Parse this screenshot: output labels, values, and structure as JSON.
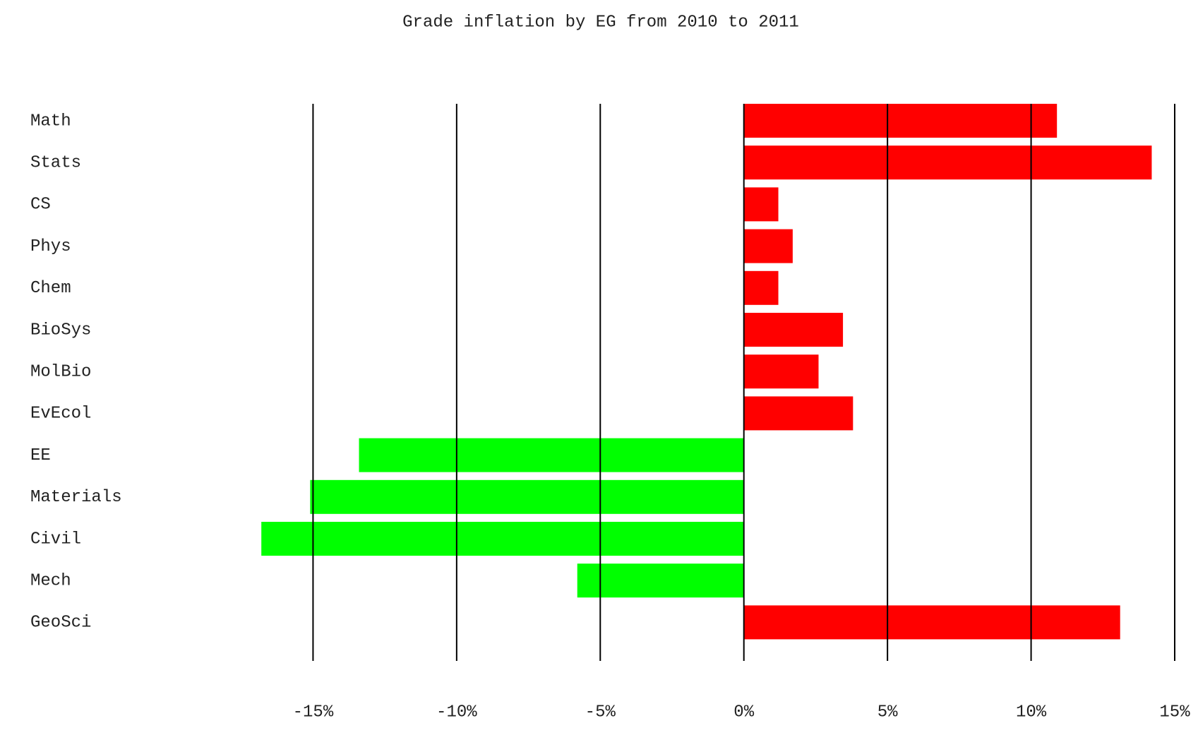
{
  "chart_data": {
    "type": "hbar",
    "title": "Grade inflation by EG from 2010 to 2011",
    "categories": [
      "Math",
      "Stats",
      "CS",
      "Phys",
      "Chem",
      "BioSys",
      "MolBio",
      "EvEcol",
      "EE",
      "Materials",
      "Civil",
      "Mech",
      "GeoSci"
    ],
    "values": [
      10.9,
      14.2,
      1.2,
      1.7,
      1.2,
      3.45,
      2.6,
      3.8,
      -13.4,
      -15.1,
      -16.8,
      -5.8,
      13.1
    ],
    "positive_color": "#ff0000",
    "negative_color": "#00ff00",
    "xlim": [
      -20,
      15
    ],
    "xticks": [
      {
        "value": -15,
        "label": "-15%"
      },
      {
        "value": -10,
        "label": "-10%"
      },
      {
        "value": -5,
        "label": "-5%"
      },
      {
        "value": 0,
        "label": "0%"
      },
      {
        "value": 5,
        "label": "5%"
      },
      {
        "value": 10,
        "label": "10%"
      },
      {
        "value": 15,
        "label": "15%"
      }
    ],
    "grid": true
  }
}
